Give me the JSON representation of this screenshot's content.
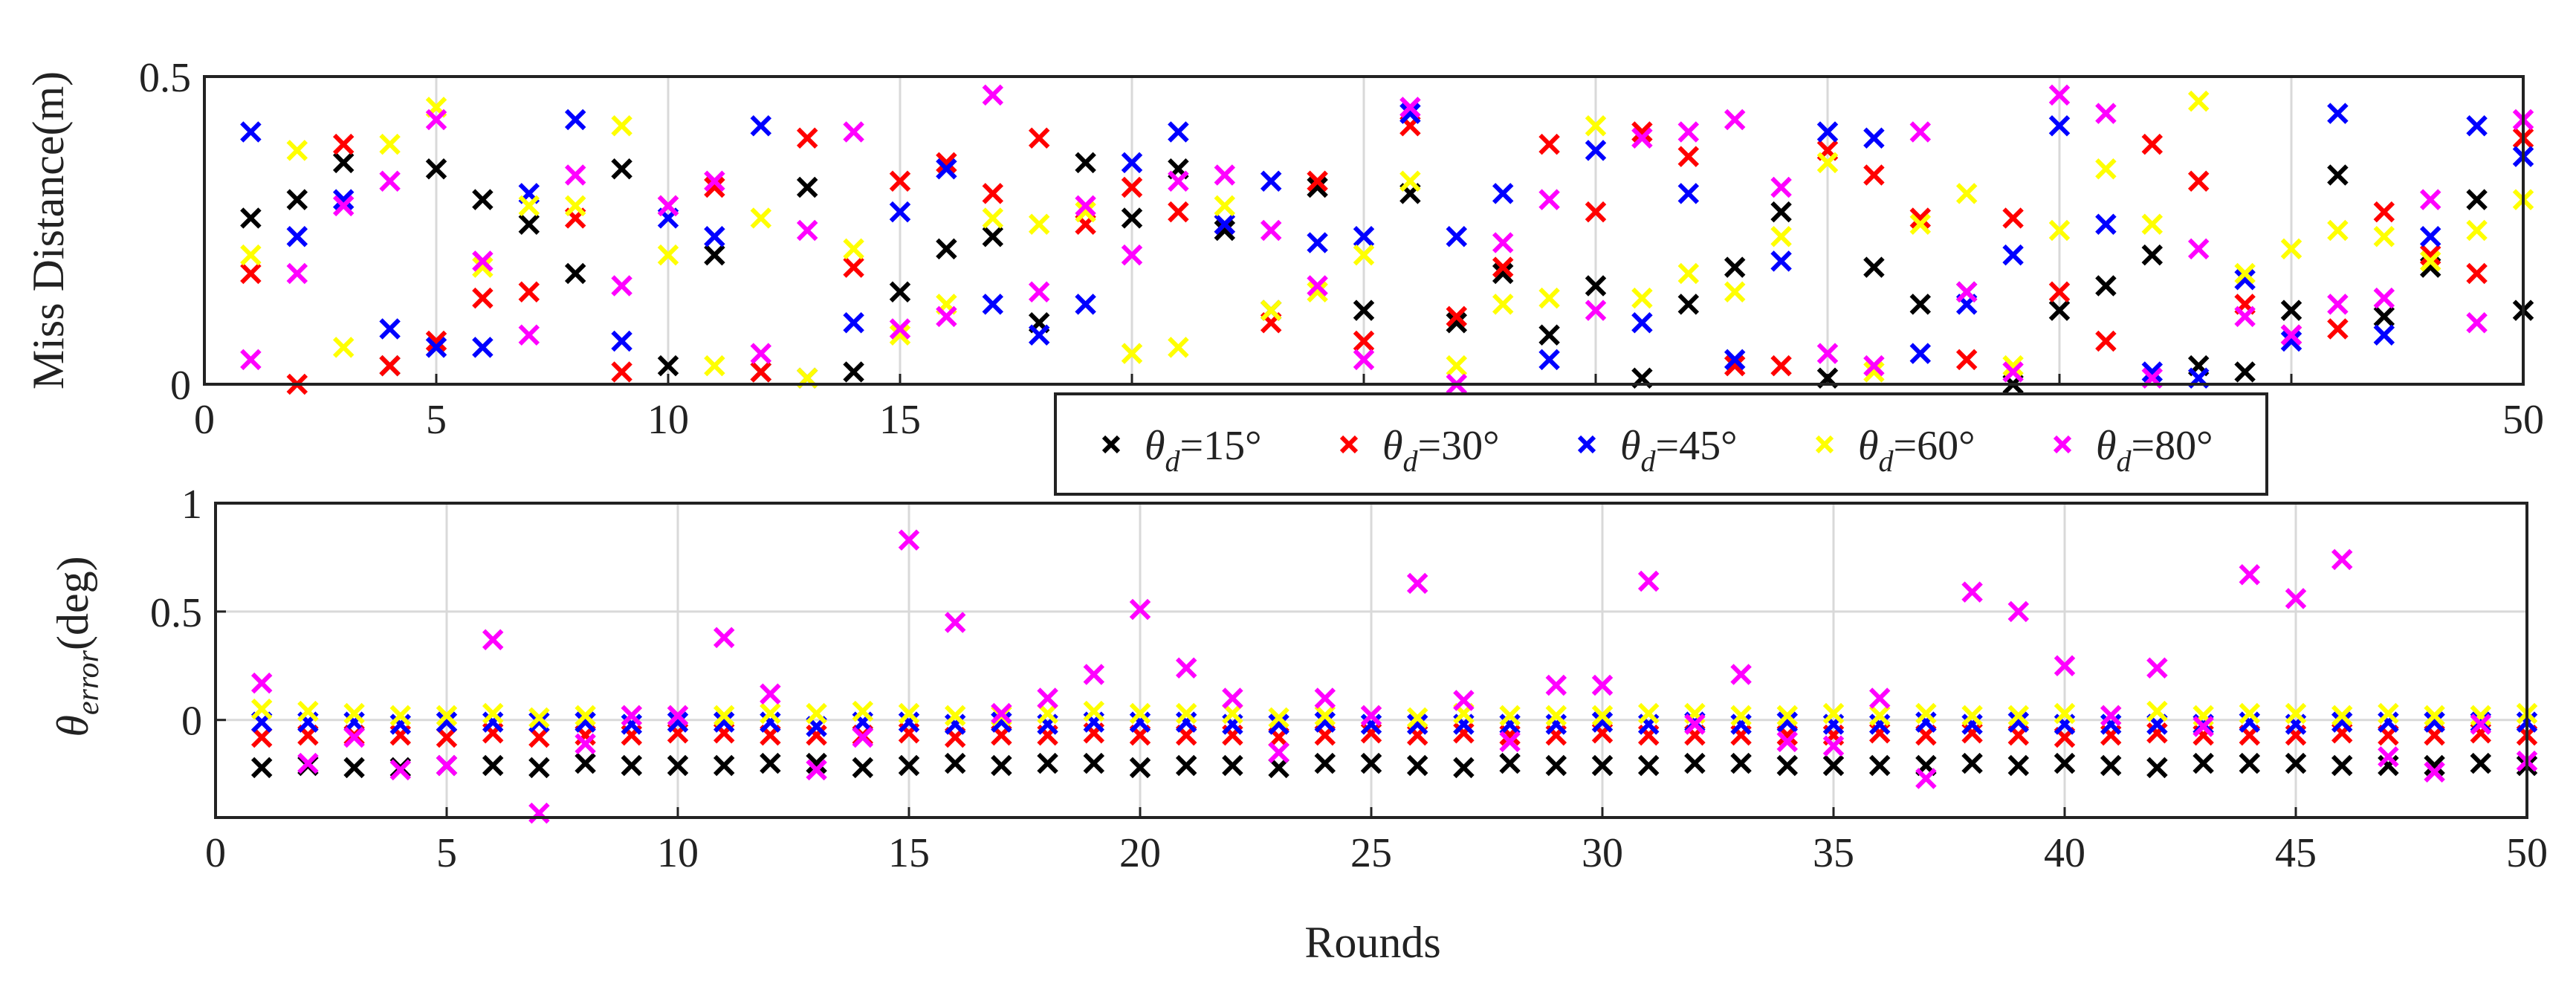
{
  "colors": {
    "frame": "#222222",
    "grid": "#d9d9d9",
    "series": [
      "#000000",
      "#ff0000",
      "#0000ff",
      "#ffff00",
      "#ff00ff"
    ]
  },
  "chart_data": [
    {
      "type": "scatter",
      "id": "top",
      "title": "",
      "xlabel": "",
      "ylabel": "Miss Distance(m)",
      "xlim": [
        0,
        50
      ],
      "ylim": [
        0,
        0.5
      ],
      "x_ticks": [
        0,
        5,
        10,
        15,
        20,
        25,
        30,
        35,
        40,
        45,
        50
      ],
      "x_tick_labels": [
        "0",
        "5",
        "10",
        "15",
        "",
        "",
        "",
        "",
        "",
        "",
        "50"
      ],
      "y_ticks": [
        0,
        0.5
      ],
      "y_tick_labels": [
        "0",
        "0.5"
      ],
      "grid": true,
      "marker": "x",
      "x": [
        1,
        2,
        3,
        4,
        5,
        6,
        7,
        8,
        9,
        10,
        11,
        12,
        13,
        14,
        15,
        16,
        17,
        18,
        19,
        20,
        21,
        22,
        23,
        24,
        25,
        26,
        27,
        28,
        29,
        30,
        31,
        32,
        33,
        34,
        35,
        36,
        37,
        38,
        39,
        40,
        41,
        42,
        43,
        44,
        45,
        46,
        47,
        48,
        49,
        50
      ],
      "series": [
        {
          "name": "θd=15°",
          "values": [
            0.27,
            0.3,
            0.36,
            0.03,
            0.35,
            0.3,
            0.26,
            0.18,
            0.35,
            0.03,
            0.21,
            0.02,
            0.32,
            0.02,
            0.15,
            0.22,
            0.24,
            0.1,
            0.36,
            0.27,
            0.35,
            0.25,
            0.12,
            0.32,
            0.12,
            0.31,
            0.1,
            0.18,
            0.08,
            0.16,
            0.01,
            0.13,
            0.19,
            0.28,
            0.01,
            0.19,
            0.13,
            0.15,
            0.0,
            0.12,
            0.16,
            0.21,
            0.03,
            0.02,
            0.12,
            0.34,
            0.11,
            0.19,
            0.3,
            0.12
          ]
        },
        {
          "name": "θd=30°",
          "values": [
            0.18,
            0.0,
            0.39,
            0.03,
            0.07,
            0.14,
            0.15,
            0.27,
            0.02,
            0.29,
            0.32,
            0.02,
            0.4,
            0.19,
            0.33,
            0.36,
            0.31,
            0.4,
            0.26,
            0.32,
            0.28,
            0.26,
            0.1,
            0.33,
            0.07,
            0.42,
            0.11,
            0.19,
            0.39,
            0.28,
            0.41,
            0.37,
            0.03,
            0.03,
            0.38,
            0.34,
            0.27,
            0.04,
            0.27,
            0.15,
            0.07,
            0.39,
            0.33,
            0.13,
            0.08,
            0.09,
            0.28,
            0.21,
            0.18,
            0.4
          ]
        },
        {
          "name": "θd=45°",
          "values": [
            0.41,
            0.24,
            0.3,
            0.09,
            0.06,
            0.06,
            0.31,
            0.43,
            0.07,
            0.27,
            0.24,
            0.42,
            0.01,
            0.1,
            0.28,
            0.35,
            0.13,
            0.08,
            0.13,
            0.36,
            0.41,
            0.26,
            0.33,
            0.23,
            0.24,
            0.44,
            0.24,
            0.31,
            0.04,
            0.38,
            0.1,
            0.31,
            0.04,
            0.2,
            0.41,
            0.4,
            0.05,
            0.13,
            0.21,
            0.42,
            0.26,
            0.02,
            0.01,
            0.17,
            0.07,
            0.44,
            0.08,
            0.24,
            0.42,
            0.37
          ]
        },
        {
          "name": "θd=60°",
          "values": [
            0.21,
            0.38,
            0.06,
            0.39,
            0.45,
            0.19,
            0.29,
            0.29,
            0.42,
            0.21,
            0.03,
            0.27,
            0.01,
            0.22,
            0.08,
            0.13,
            0.27,
            0.26,
            0.28,
            0.05,
            0.06,
            0.29,
            0.12,
            0.15,
            0.21,
            0.33,
            0.03,
            0.13,
            0.14,
            0.42,
            0.14,
            0.18,
            0.15,
            0.24,
            0.36,
            0.02,
            0.26,
            0.31,
            0.03,
            0.25,
            0.35,
            0.26,
            0.46,
            0.18,
            0.22,
            0.25,
            0.24,
            0.2,
            0.25,
            0.3
          ]
        },
        {
          "name": "θd=80°",
          "values": [
            0.04,
            0.18,
            0.29,
            0.33,
            0.43,
            0.2,
            0.08,
            0.34,
            0.16,
            0.29,
            0.33,
            0.05,
            0.25,
            0.41,
            0.09,
            0.11,
            0.47,
            0.15,
            0.29,
            0.21,
            0.33,
            0.34,
            0.25,
            0.16,
            0.04,
            0.45,
            0.0,
            0.23,
            0.3,
            0.12,
            0.4,
            0.41,
            0.43,
            0.32,
            0.05,
            0.03,
            0.41,
            0.15,
            0.02,
            0.47,
            0.44,
            0.01,
            0.22,
            0.11,
            0.08,
            0.13,
            0.14,
            0.3,
            0.1,
            0.43
          ]
        }
      ]
    },
    {
      "type": "scatter",
      "id": "bottom",
      "title": "",
      "xlabel": "Rounds",
      "ylabel_main": "θ",
      "ylabel_sub": "error",
      "ylabel_unit": "(deg)",
      "xlim": [
        0,
        50
      ],
      "ylim": [
        -0.45,
        1
      ],
      "x_ticks": [
        0,
        5,
        10,
        15,
        20,
        25,
        30,
        35,
        40,
        45,
        50
      ],
      "x_tick_labels": [
        "0",
        "5",
        "10",
        "15",
        "20",
        "25",
        "30",
        "35",
        "40",
        "45",
        "50"
      ],
      "y_ticks": [
        0,
        0.5,
        1
      ],
      "y_tick_labels": [
        "0",
        "0.5",
        "1"
      ],
      "grid": true,
      "marker": "x",
      "x": [
        1,
        2,
        3,
        4,
        5,
        6,
        7,
        8,
        9,
        10,
        11,
        12,
        13,
        14,
        15,
        16,
        17,
        18,
        19,
        20,
        21,
        22,
        23,
        24,
        25,
        26,
        27,
        28,
        29,
        30,
        31,
        32,
        33,
        34,
        35,
        36,
        37,
        38,
        39,
        40,
        41,
        42,
        43,
        44,
        45,
        46,
        47,
        48,
        49,
        50
      ],
      "series": [
        {
          "name": "θd=15°",
          "values": [
            -0.22,
            -0.21,
            -0.22,
            -0.22,
            -0.21,
            -0.21,
            -0.22,
            -0.2,
            -0.21,
            -0.21,
            -0.21,
            -0.2,
            -0.2,
            -0.22,
            -0.21,
            -0.2,
            -0.21,
            -0.2,
            -0.2,
            -0.22,
            -0.21,
            -0.21,
            -0.22,
            -0.2,
            -0.2,
            -0.21,
            -0.22,
            -0.2,
            -0.21,
            -0.21,
            -0.21,
            -0.2,
            -0.2,
            -0.21,
            -0.21,
            -0.21,
            -0.21,
            -0.2,
            -0.21,
            -0.2,
            -0.21,
            -0.22,
            -0.2,
            -0.2,
            -0.2,
            -0.21,
            -0.21,
            -0.21,
            -0.2,
            -0.21
          ]
        },
        {
          "name": "θd=30°",
          "values": [
            -0.08,
            -0.07,
            -0.07,
            -0.07,
            -0.08,
            -0.06,
            -0.08,
            -0.07,
            -0.07,
            -0.06,
            -0.06,
            -0.07,
            -0.07,
            -0.07,
            -0.06,
            -0.08,
            -0.07,
            -0.07,
            -0.06,
            -0.07,
            -0.07,
            -0.07,
            -0.08,
            -0.07,
            -0.06,
            -0.07,
            -0.06,
            -0.07,
            -0.07,
            -0.06,
            -0.07,
            -0.07,
            -0.07,
            -0.07,
            -0.07,
            -0.06,
            -0.07,
            -0.06,
            -0.07,
            -0.08,
            -0.07,
            -0.06,
            -0.07,
            -0.07,
            -0.07,
            -0.06,
            -0.07,
            -0.07,
            -0.06,
            -0.07
          ]
        },
        {
          "name": "θd=45°",
          "values": [
            -0.01,
            -0.01,
            -0.01,
            -0.02,
            -0.01,
            -0.01,
            -0.01,
            -0.01,
            -0.02,
            -0.01,
            -0.01,
            -0.01,
            -0.03,
            -0.01,
            -0.01,
            -0.02,
            -0.01,
            -0.02,
            -0.01,
            -0.01,
            -0.01,
            -0.02,
            -0.02,
            -0.01,
            -0.02,
            -0.02,
            -0.02,
            -0.02,
            -0.02,
            -0.01,
            -0.02,
            -0.01,
            -0.02,
            -0.01,
            -0.02,
            -0.02,
            -0.01,
            -0.02,
            -0.01,
            -0.02,
            -0.02,
            -0.02,
            -0.02,
            -0.01,
            -0.02,
            -0.01,
            -0.01,
            -0.01,
            -0.01,
            -0.01
          ]
        },
        {
          "name": "θd=60°",
          "values": [
            0.05,
            0.04,
            0.03,
            0.02,
            0.02,
            0.03,
            0.01,
            0.02,
            0.02,
            0.02,
            0.02,
            0.03,
            0.03,
            0.04,
            0.03,
            0.02,
            0.02,
            0.03,
            0.04,
            0.03,
            0.03,
            0.03,
            0.01,
            0.02,
            0.02,
            0.01,
            0.03,
            0.02,
            0.02,
            0.02,
            0.03,
            0.03,
            0.02,
            0.02,
            0.03,
            0.02,
            0.03,
            0.02,
            0.02,
            0.03,
            0.02,
            0.04,
            0.02,
            0.03,
            0.03,
            0.02,
            0.03,
            0.02,
            0.02,
            0.03
          ]
        },
        {
          "name": "θd=80°",
          "values": [
            0.17,
            -0.2,
            -0.08,
            -0.23,
            -0.21,
            0.37,
            -0.43,
            -0.11,
            0.02,
            0.02,
            0.38,
            0.12,
            -0.23,
            -0.08,
            0.83,
            0.45,
            0.03,
            0.1,
            0.21,
            0.51,
            0.24,
            0.1,
            -0.15,
            0.1,
            0.02,
            0.63,
            0.09,
            -0.1,
            0.16,
            0.16,
            0.64,
            -0.02,
            0.21,
            -0.1,
            -0.12,
            0.1,
            -0.27,
            0.59,
            0.5,
            0.25,
            0.02,
            0.24,
            -0.03,
            0.67,
            0.56,
            0.74,
            -0.17,
            -0.24,
            -0.02,
            -0.19
          ]
        }
      ]
    }
  ],
  "legend": {
    "placement": "between-panels",
    "entries": [
      {
        "main": "θ",
        "sub": "d",
        "rest": "=15°"
      },
      {
        "main": "θ",
        "sub": "d",
        "rest": "=30°"
      },
      {
        "main": "θ",
        "sub": "d",
        "rest": "=45°"
      },
      {
        "main": "θ",
        "sub": "d",
        "rest": "=60°"
      },
      {
        "main": "θ",
        "sub": "d",
        "rest": "=80°"
      }
    ]
  }
}
